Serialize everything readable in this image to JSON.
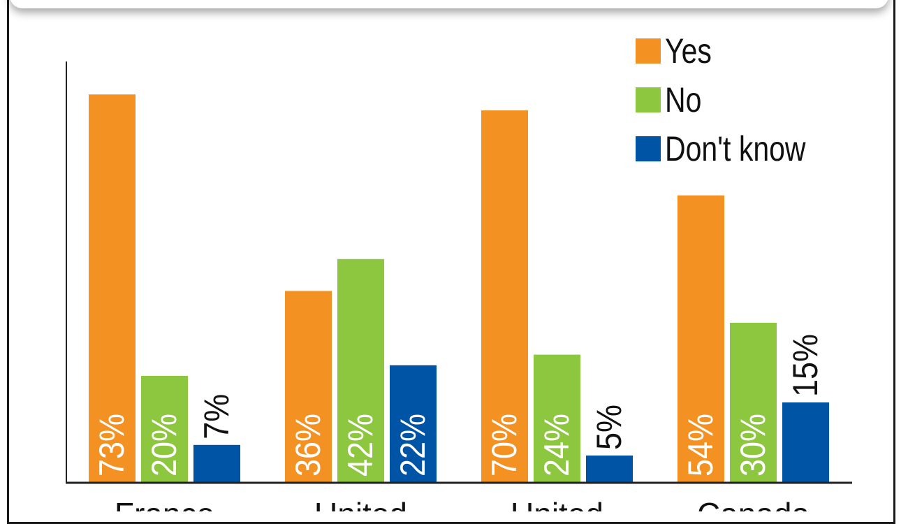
{
  "chart_data": {
    "type": "bar",
    "categories": [
      "France",
      "United",
      "United",
      "Canada"
    ],
    "series": [
      {
        "name": "Yes",
        "color": "#F39223",
        "values": [
          73,
          36,
          70,
          54
        ],
        "labels": [
          "73%",
          "36%",
          "70%",
          "54%"
        ]
      },
      {
        "name": "No",
        "color": "#8DC63F",
        "values": [
          20,
          42,
          24,
          30
        ],
        "labels": [
          "20%",
          "42%",
          "24%",
          "30%"
        ]
      },
      {
        "name": "Don't know",
        "color": "#0054A6",
        "values": [
          7,
          22,
          5,
          15
        ],
        "labels": [
          "7%",
          "22%",
          "5%",
          "15%"
        ]
      }
    ],
    "ylim": [
      0,
      80
    ],
    "legend_position": "top-right",
    "grid": false
  }
}
